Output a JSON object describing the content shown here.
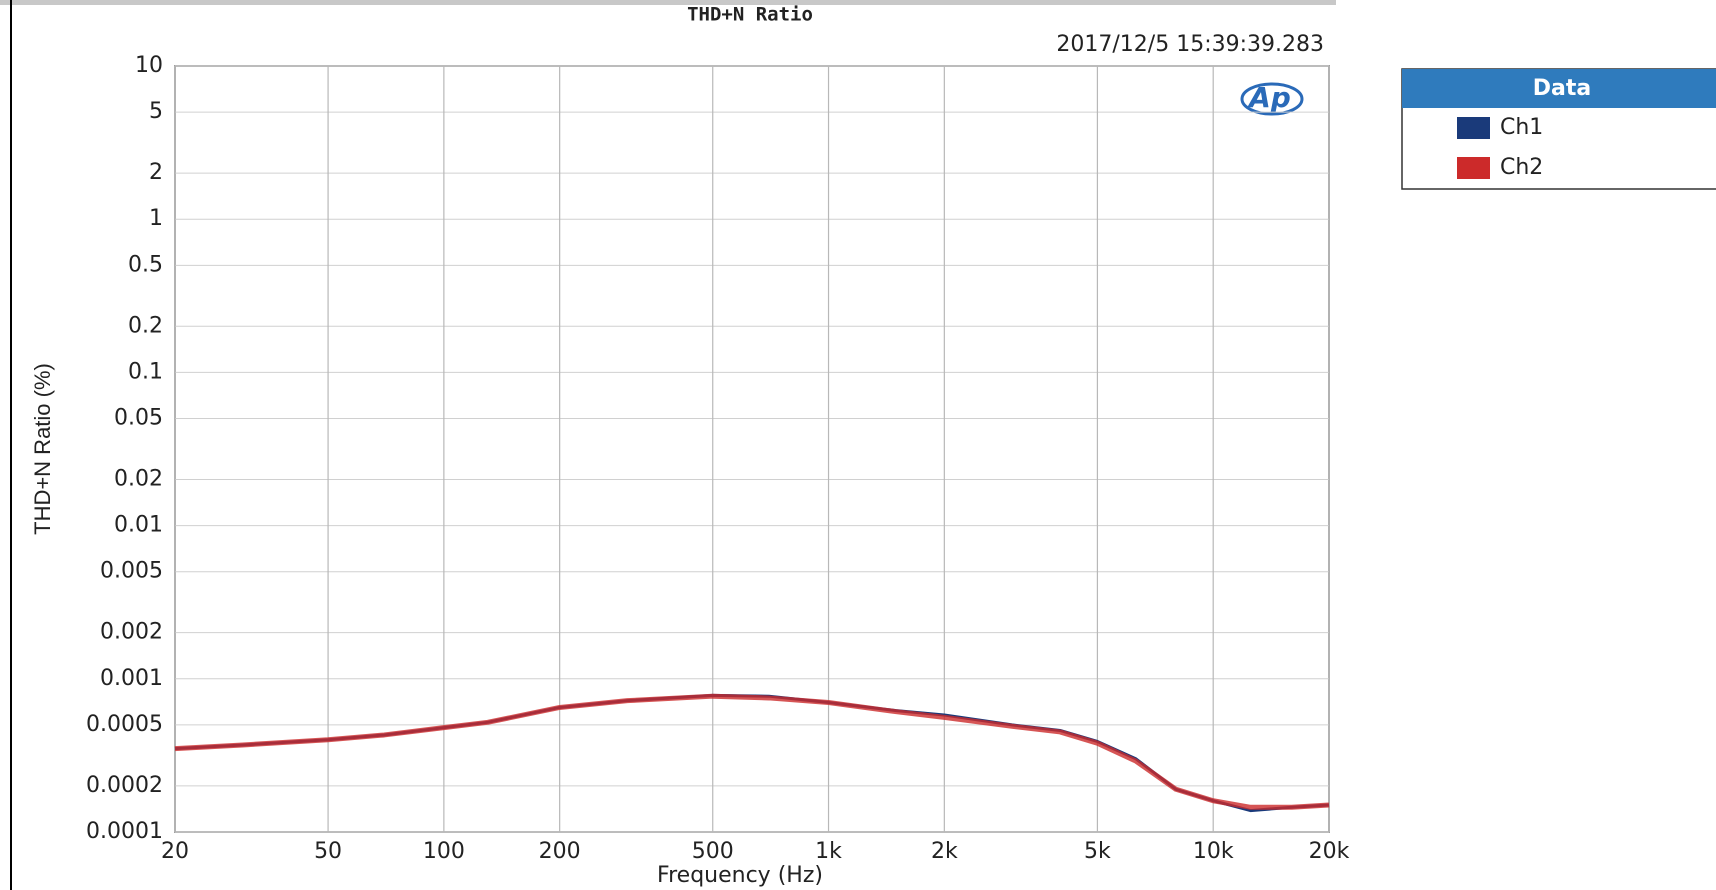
{
  "chart_data": {
    "type": "line",
    "title": "THD+N Ratio",
    "timestamp": "2017/12/5 15:39:39.283",
    "logo": "Ap",
    "x_label": "Frequency (Hz)",
    "y_label": "THD+N Ratio (%)",
    "legend_title": "Data",
    "legend_position": "outside right",
    "log_x": true,
    "log_y": true,
    "grid": true,
    "x": [
      20,
      30,
      50,
      70,
      100,
      130,
      200,
      300,
      500,
      700,
      1000,
      1500,
      2000,
      3000,
      4000,
      5000,
      6300,
      8000,
      10000,
      12500,
      16000,
      20000
    ],
    "series": [
      {
        "name": "Ch1",
        "color": "#1a3a7a",
        "values": [
          0.00035,
          0.00037,
          0.0004,
          0.00043,
          0.00048,
          0.00052,
          0.00065,
          0.00072,
          0.00078,
          0.00077,
          0.0007,
          0.00062,
          0.00058,
          0.0005,
          0.00046,
          0.00039,
          0.0003,
          0.00019,
          0.00016,
          0.000138,
          0.000145,
          0.00015
        ]
      },
      {
        "name": "Ch2",
        "color": "#cc2a2a",
        "values": [
          0.00035,
          0.00037,
          0.0004,
          0.00043,
          0.00048,
          0.00052,
          0.00065,
          0.00072,
          0.00077,
          0.00075,
          0.0007,
          0.00061,
          0.00056,
          0.00049,
          0.00045,
          0.00038,
          0.00029,
          0.00019,
          0.00016,
          0.000145,
          0.000145,
          0.00015
        ]
      }
    ],
    "xlim": [
      20,
      20000
    ],
    "ylim": [
      0.0001,
      10
    ],
    "xticks": [
      20,
      50,
      100,
      200,
      500,
      {
        "value": 1000,
        "label": "1k"
      },
      {
        "value": 2000,
        "label": "2k"
      },
      {
        "value": 5000,
        "label": "5k"
      },
      {
        "value": 10000,
        "label": "10k"
      },
      {
        "value": 20000,
        "label": "20k"
      }
    ],
    "yticks": [
      0.0001,
      0.0002,
      0.0005,
      0.001,
      0.002,
      0.005,
      0.01,
      0.02,
      0.05,
      0.1,
      0.2,
      0.5,
      1,
      2,
      5,
      10
    ]
  }
}
